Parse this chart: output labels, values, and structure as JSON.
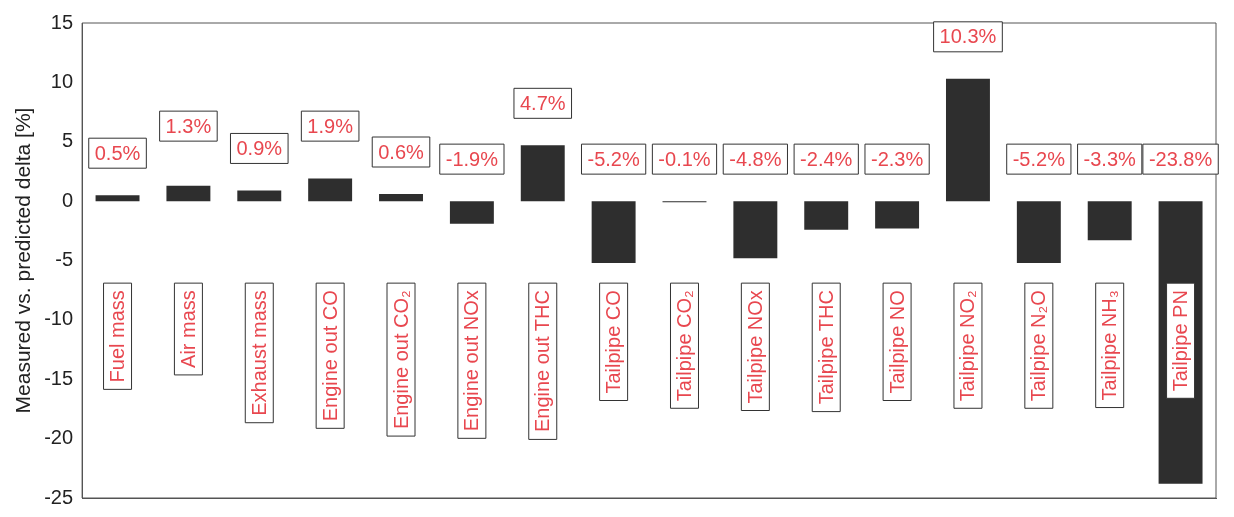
{
  "chart_data": {
    "type": "bar",
    "ylabel": "Measured vs. predicted delta [%]",
    "categories": [
      "Fuel mass",
      "Air mass",
      "Exhaust mass",
      "Engine out CO",
      "Engine out CO₂",
      "Engine out NOx",
      "Engine out THC",
      "Tailpipe CO",
      "Tailpipe CO₂",
      "Tailpipe NOx",
      "Tailpipe THC",
      "Tailpipe NO",
      "Tailpipe NO₂",
      "Tailpipe N₂O",
      "Tailpipe NH₃",
      "Tailpipe PN"
    ],
    "values": [
      0.5,
      1.3,
      0.9,
      1.9,
      0.6,
      -1.9,
      4.7,
      -5.2,
      -0.1,
      -4.8,
      -2.4,
      -2.3,
      10.3,
      -5.2,
      -3.3,
      -23.8
    ],
    "value_labels": [
      "0.5%",
      "1.3%",
      "0.9%",
      "1.9%",
      "0.6%",
      "-1.9%",
      "4.7%",
      "-5.2%",
      "-0.1%",
      "-4.8%",
      "-2.4%",
      "-2.3%",
      "10.3%",
      "-5.2%",
      "-3.3%",
      "-23.8%"
    ],
    "color": "#2e2e2e",
    "ylim": [
      -25,
      15
    ],
    "yticks": [
      -25,
      -20,
      -15,
      -10,
      -5,
      0,
      5,
      10,
      15
    ],
    "grid": false,
    "legend": false,
    "tick_labels": "y"
  }
}
